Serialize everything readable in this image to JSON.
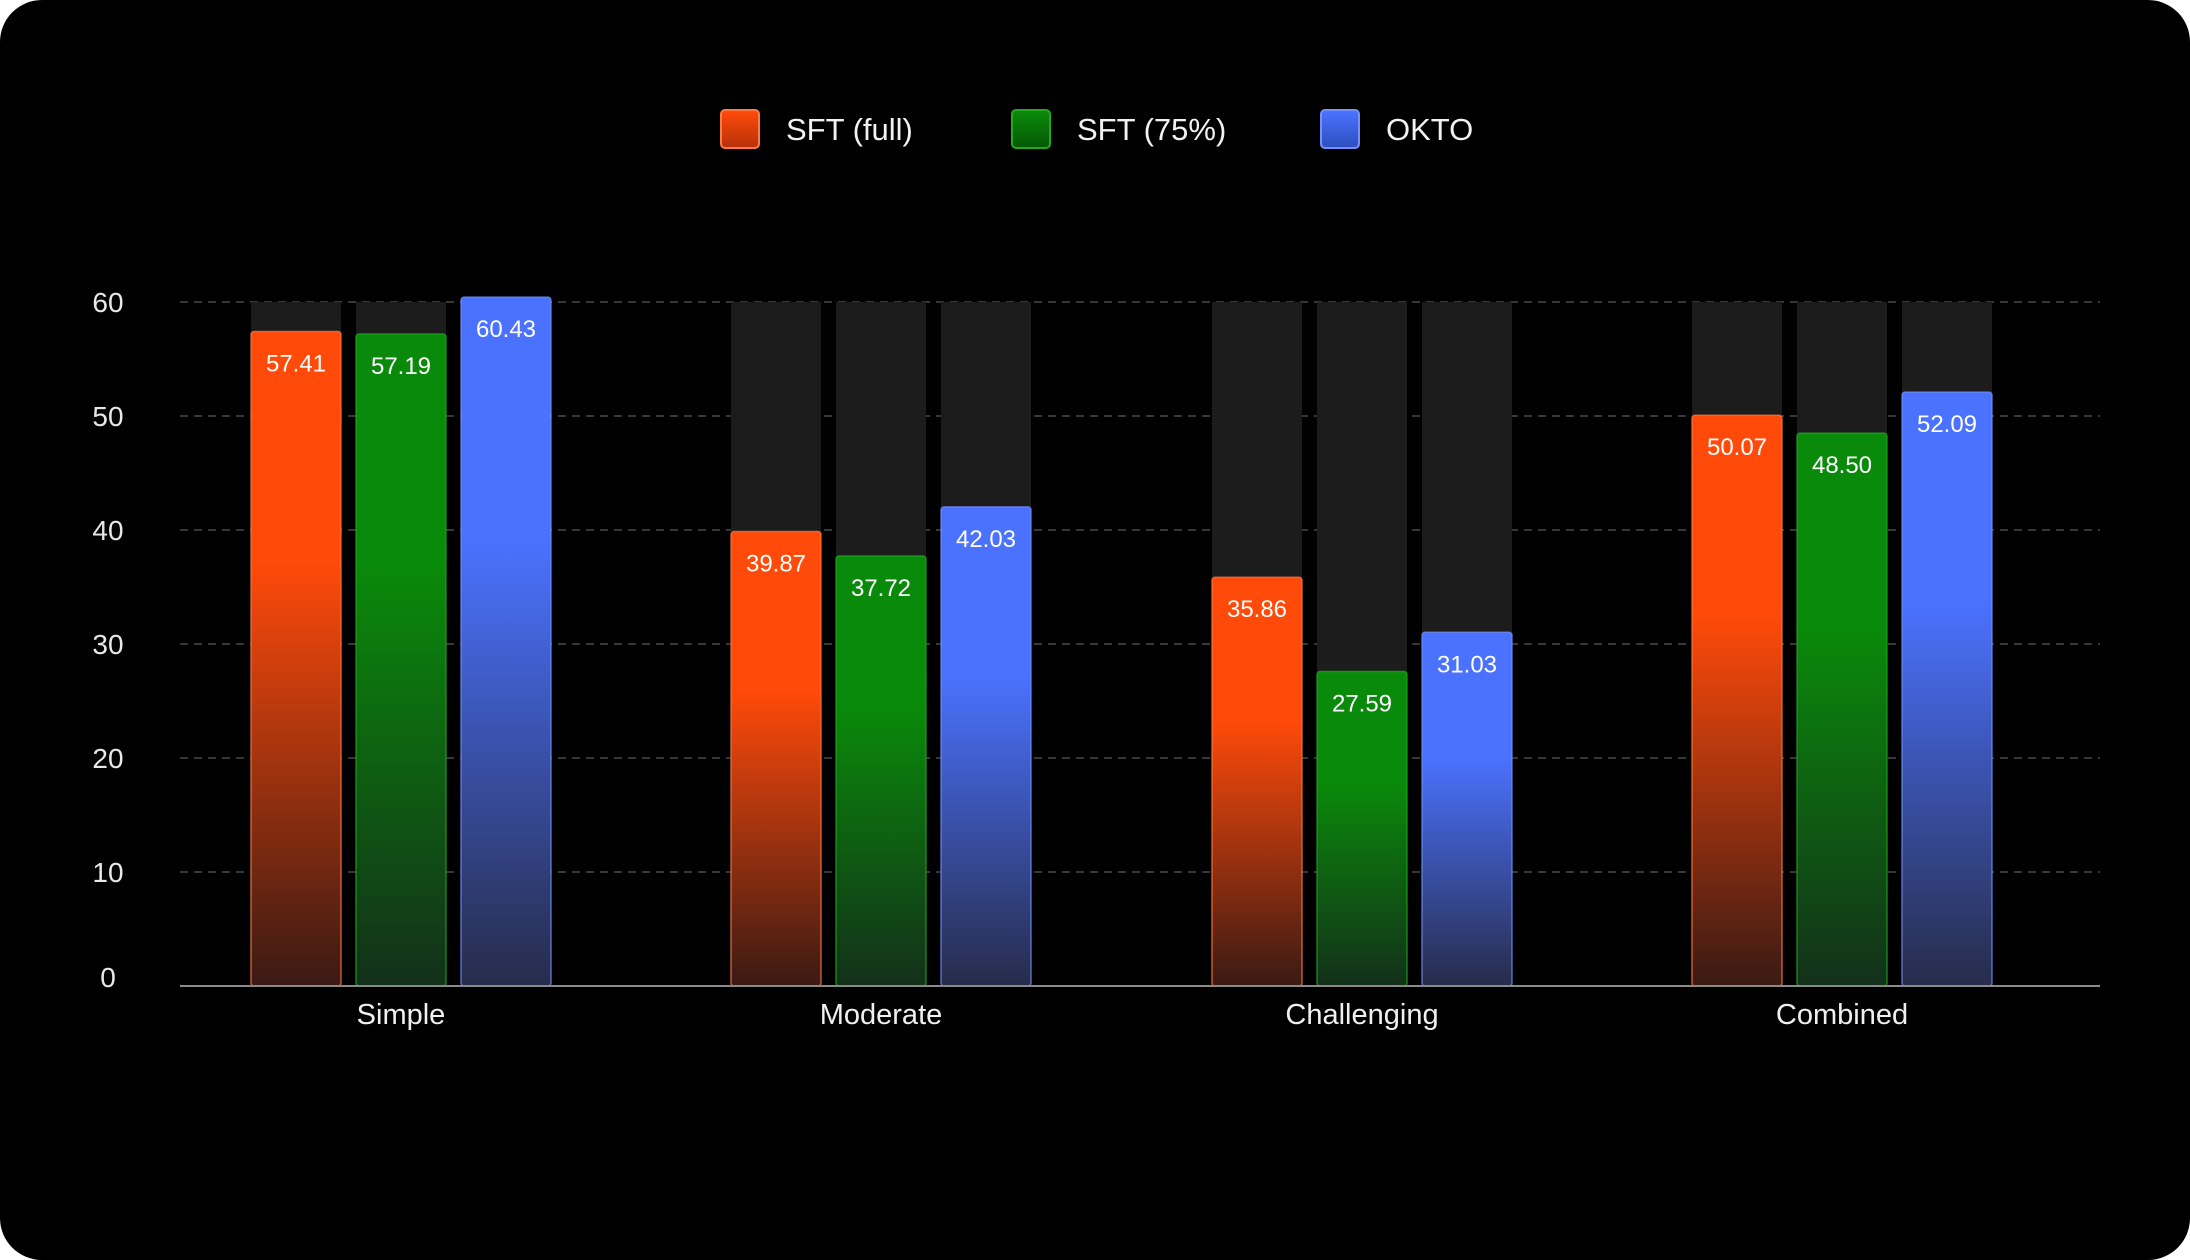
{
  "chart_data": {
    "type": "bar",
    "title": "",
    "xlabel": "",
    "ylabel": "",
    "categories": [
      "Simple",
      "Moderate",
      "Challenging",
      "Combined"
    ],
    "series": [
      {
        "name": "SFT (full)",
        "color": "#ff4a0a",
        "values": [
          57.41,
          39.87,
          35.86,
          50.07
        ]
      },
      {
        "name": "SFT (75%)",
        "color": "#0a8a0a",
        "values": [
          57.19,
          37.72,
          27.59,
          48.5
        ]
      },
      {
        "name": "OKTO",
        "color": "#4a72ff",
        "values": [
          60.43,
          42.03,
          31.03,
          52.09
        ]
      }
    ],
    "ylim": [
      0,
      60
    ],
    "yticks": [
      0,
      10,
      20,
      30,
      40,
      50,
      60
    ],
    "grid": true,
    "grid_style": "dashed",
    "legend_position": "top-center",
    "background_track": true
  }
}
